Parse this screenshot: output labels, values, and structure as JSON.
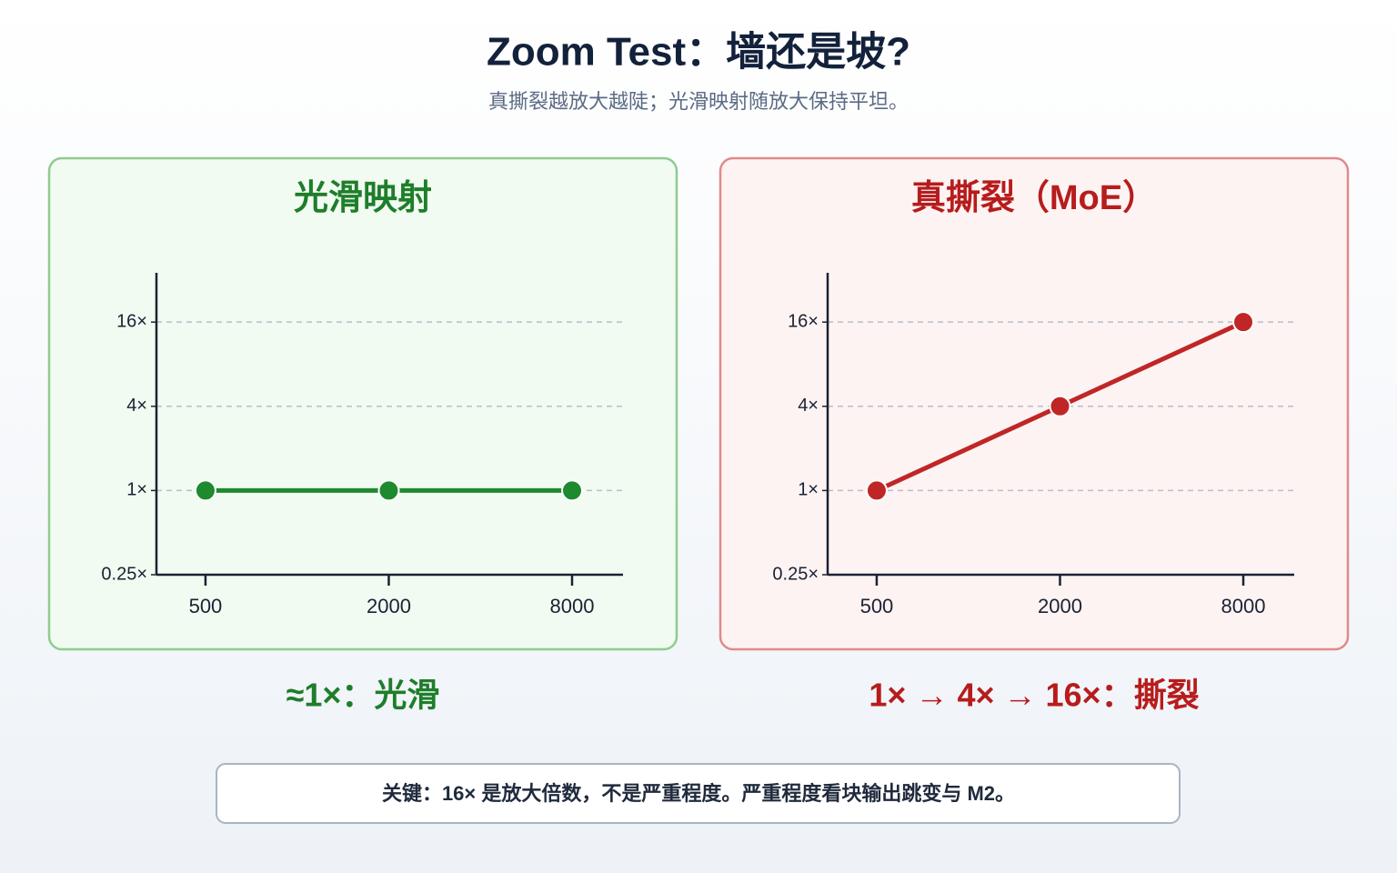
{
  "title": "Zoom Test：墙还是坡?",
  "subtitle": "真撕裂越放大越陡；光滑映射随放大保持平坦。",
  "chart_data": [
    {
      "type": "line",
      "title": "光滑映射",
      "caption": "≈1×：光滑",
      "x": [
        500,
        2000,
        8000
      ],
      "series": [
        {
          "color": "#1e8a2e",
          "values": [
            1,
            1,
            1
          ]
        }
      ],
      "xscale": "log",
      "yscale": "log",
      "xlim": [
        345,
        11760
      ],
      "ylim": [
        0.25,
        36
      ],
      "xticks": [
        500,
        2000,
        8000
      ],
      "yticks": [
        {
          "value": 0.25,
          "label": "0.25×"
        },
        {
          "value": 1,
          "label": "1×"
        },
        {
          "value": 4,
          "label": "4×"
        },
        {
          "value": 16,
          "label": "16×"
        }
      ],
      "grid": true,
      "panel_fill": "#f1fbf1",
      "panel_stroke": "#8fcc8f",
      "accent": "#1e7e2a"
    },
    {
      "type": "line",
      "title": "真撕裂（MoE）",
      "caption": "1× → 4× → 16×：撕裂",
      "x": [
        500,
        2000,
        8000
      ],
      "series": [
        {
          "color": "#c02626",
          "values": [
            1,
            4,
            16
          ]
        }
      ],
      "xscale": "log",
      "yscale": "log",
      "xlim": [
        345,
        11760
      ],
      "ylim": [
        0.25,
        36
      ],
      "xticks": [
        500,
        2000,
        8000
      ],
      "yticks": [
        {
          "value": 0.25,
          "label": "0.25×"
        },
        {
          "value": 1,
          "label": "1×"
        },
        {
          "value": 4,
          "label": "4×"
        },
        {
          "value": 16,
          "label": "16×"
        }
      ],
      "grid": true,
      "panel_fill": "#fdf3f3",
      "panel_stroke": "#e08a8a",
      "accent": "#b71c1c"
    }
  ],
  "note": "关键：16× 是放大倍数，不是严重程度。严重程度看块输出跳变与 M2。"
}
